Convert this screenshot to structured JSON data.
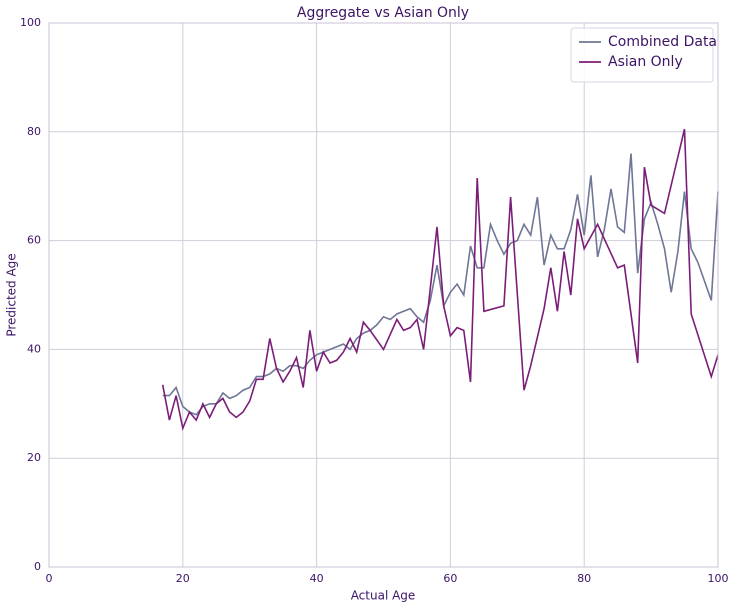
{
  "chart_data": {
    "type": "line",
    "title": "Aggregate vs Asian Only",
    "x_label": "Actual Age",
    "y_label": "Predicted Age",
    "xlim": [
      0,
      100
    ],
    "ylim": [
      0,
      100
    ],
    "xticks": [
      0,
      20,
      40,
      60,
      80,
      100
    ],
    "yticks": [
      0,
      20,
      40,
      60,
      80,
      100
    ],
    "grid": true,
    "legend": "upper right",
    "series": [
      {
        "name": "Combined Data",
        "color": "#6f7696",
        "x": [
          17,
          18,
          19,
          20,
          21,
          22,
          23,
          24,
          25,
          26,
          27,
          28,
          29,
          30,
          31,
          32,
          33,
          34,
          35,
          36,
          37,
          38,
          39,
          40,
          41,
          42,
          43,
          44,
          45,
          46,
          47,
          48,
          49,
          50,
          51,
          52,
          53,
          54,
          55,
          56,
          57,
          58,
          59,
          60,
          61,
          62,
          63,
          64,
          65,
          66,
          67,
          68,
          69,
          70,
          71,
          72,
          73,
          74,
          75,
          76,
          77,
          78,
          79,
          80,
          81,
          82,
          83,
          84,
          85,
          86,
          87,
          88,
          89,
          90,
          91,
          92,
          93,
          94,
          95,
          96,
          97,
          98,
          99,
          100
        ],
        "values": [
          31.5,
          31.5,
          33,
          29.5,
          28.5,
          28,
          29.5,
          30,
          30,
          32,
          31,
          31.5,
          32.5,
          33,
          35,
          35,
          35.5,
          36.5,
          36,
          37,
          37,
          36.5,
          38,
          39,
          39.5,
          40,
          40.5,
          41,
          40,
          42,
          43,
          43.5,
          44.5,
          46,
          45.5,
          46.5,
          47,
          47.5,
          46,
          45,
          49,
          55.5,
          48,
          50.5,
          52,
          50,
          59,
          55,
          55,
          63,
          60,
          57.5,
          59.5,
          60,
          63,
          61,
          68,
          55.5,
          61,
          58.5,
          58.5,
          62,
          68.5,
          61,
          72,
          57,
          62,
          69.5,
          62.5,
          61.5,
          76,
          54,
          64,
          67,
          63,
          58.5,
          50.5,
          58,
          69,
          58.5,
          56,
          52.5,
          49,
          69
        ]
      },
      {
        "name": "Asian Only",
        "color": "#7b1d78",
        "x": [
          17,
          18,
          19,
          20,
          21,
          22,
          23,
          24,
          25,
          26,
          27,
          28,
          29,
          30,
          31,
          32,
          33,
          34,
          35,
          36,
          37,
          38,
          39,
          40,
          41,
          42,
          43,
          44,
          45,
          46,
          47,
          48,
          50,
          52,
          53,
          54,
          55,
          56,
          58,
          59,
          60,
          61,
          62,
          63,
          64,
          65,
          68,
          69,
          71,
          72,
          74,
          75,
          76,
          77,
          78,
          79,
          80,
          82,
          85,
          86,
          88,
          89,
          90,
          92,
          95,
          96,
          99,
          100
        ],
        "values": [
          33.5,
          27,
          31.5,
          25.5,
          28.5,
          27,
          30,
          27.5,
          30,
          31,
          28.5,
          27.5,
          28.5,
          30.5,
          34.5,
          34.5,
          42,
          36.5,
          34,
          36,
          38.5,
          33,
          43.5,
          36,
          39.5,
          37.5,
          38,
          39.5,
          42,
          39.5,
          45,
          43.5,
          40,
          45.5,
          43.5,
          44,
          45.5,
          40,
          62.5,
          48,
          42.5,
          44,
          43.5,
          34,
          71.5,
          47,
          48,
          68,
          32.5,
          37,
          47.5,
          55,
          47,
          58,
          50,
          64,
          58.5,
          63,
          55,
          55.5,
          37.5,
          73.5,
          66.5,
          65,
          80.5,
          46.5,
          35,
          39
        ]
      }
    ]
  }
}
